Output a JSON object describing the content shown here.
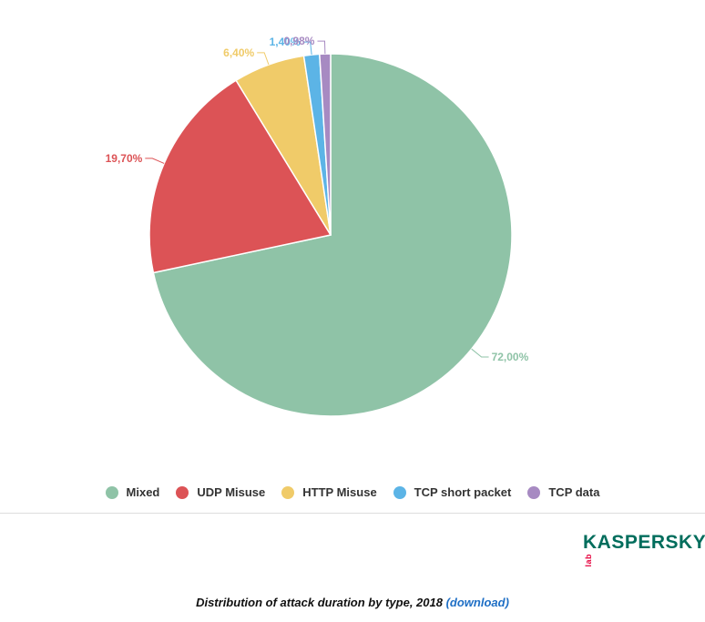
{
  "chart_data": {
    "type": "pie",
    "categories": [
      "Mixed",
      "UDP Misuse",
      "HTTP Misuse",
      "TCP short packet",
      "TCP data"
    ],
    "values": [
      72.0,
      19.7,
      6.4,
      1.4,
      0.98
    ],
    "data_labels": [
      "72,00%",
      "19,70%",
      "6,40%",
      "1,40%",
      "0,98%"
    ],
    "colors": [
      "#8fc3a7",
      "#dc5356",
      "#f0cb69",
      "#5cb4e6",
      "#a78ac2"
    ],
    "legend_position": "bottom",
    "title": "",
    "start_angle": "top",
    "direction": "clockwise"
  },
  "legend": {
    "items": [
      {
        "label": "Mixed",
        "color": "#8fc3a7"
      },
      {
        "label": "UDP Misuse",
        "color": "#dc5356"
      },
      {
        "label": "HTTP Misuse",
        "color": "#f0cb69"
      },
      {
        "label": "TCP short packet",
        "color": "#5cb4e6"
      },
      {
        "label": "TCP data",
        "color": "#a78ac2"
      }
    ]
  },
  "logo": {
    "text": "KASPERSKY",
    "suffix": "lab"
  },
  "caption": {
    "text": "Distribution of attack duration by type, 2018",
    "link_text": "(download)"
  }
}
